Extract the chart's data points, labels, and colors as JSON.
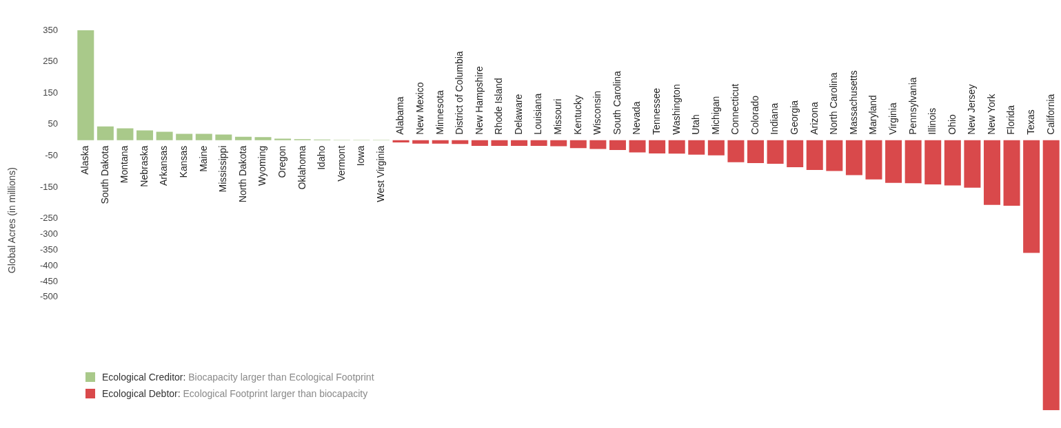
{
  "chart_data": {
    "type": "bar",
    "ylabel": "Global Acres (in millions)",
    "categories": [
      "Alaska",
      "South Dakota",
      "Montana",
      "Nebraska",
      "Arkansas",
      "Kansas",
      "Maine",
      "Mississippi",
      "North Dakota",
      "Wyoming",
      "Oregon",
      "Oklahoma",
      "Idaho",
      "Vermont",
      "Iowa",
      "West Virginia",
      "Alabama",
      "New Mexico",
      "Minnesota",
      "District of Columbia",
      "New Hampshire",
      "Rhode Island",
      "Delaware",
      "Louisiana",
      "Missouri",
      "Kentucky",
      "Wisconsin",
      "South Carolina",
      "Nevada",
      "Tennessee",
      "Washington",
      "Utah",
      "Michigan",
      "Connecticut",
      "Colorado",
      "Indiana",
      "Georgia",
      "Arizona",
      "North Carolina",
      "Massachusetts",
      "Maryland",
      "Virginia",
      "Pennsylvania",
      "Illinois",
      "Ohio",
      "New Jersey",
      "New York",
      "Florida",
      "Texas",
      "California"
    ],
    "series": [
      {
        "name": "Ecological Creditor: Biocapacity larger than Ecological Footprint",
        "color": "#a9c98a",
        "values": [
          350,
          44,
          38,
          31,
          27,
          20,
          20,
          18,
          11,
          10,
          5,
          3,
          2,
          1,
          1,
          1,
          null,
          null,
          null,
          null,
          null,
          null,
          null,
          null,
          null,
          null,
          null,
          null,
          null,
          null,
          null,
          null,
          null,
          null,
          null,
          null,
          null,
          null,
          null,
          null,
          null,
          null,
          null,
          null,
          null,
          null,
          null,
          null,
          null,
          null
        ]
      },
      {
        "name": "Ecological Debtor: Ecological Footprint larger than biocapacity",
        "color": "#d9494b",
        "values": [
          null,
          null,
          null,
          null,
          null,
          null,
          null,
          null,
          null,
          null,
          null,
          null,
          null,
          null,
          null,
          null,
          -7,
          -11,
          -11,
          -12,
          -18,
          -18,
          -18,
          -18,
          -19,
          -25,
          -28,
          -31,
          -39,
          -42,
          -43,
          -46,
          -48,
          -70,
          -73,
          -75,
          -86,
          -95,
          -98,
          -111,
          -125,
          -136,
          -137,
          -141,
          -144,
          -151,
          -206,
          -209,
          -359,
          -860
        ]
      }
    ],
    "ylim": [
      -860,
      350
    ],
    "yticks": [
      350,
      250,
      150,
      50,
      -50,
      -150,
      -250,
      -300,
      -350,
      -400,
      -450,
      -500
    ],
    "grid": false,
    "legend": "bottom left"
  }
}
